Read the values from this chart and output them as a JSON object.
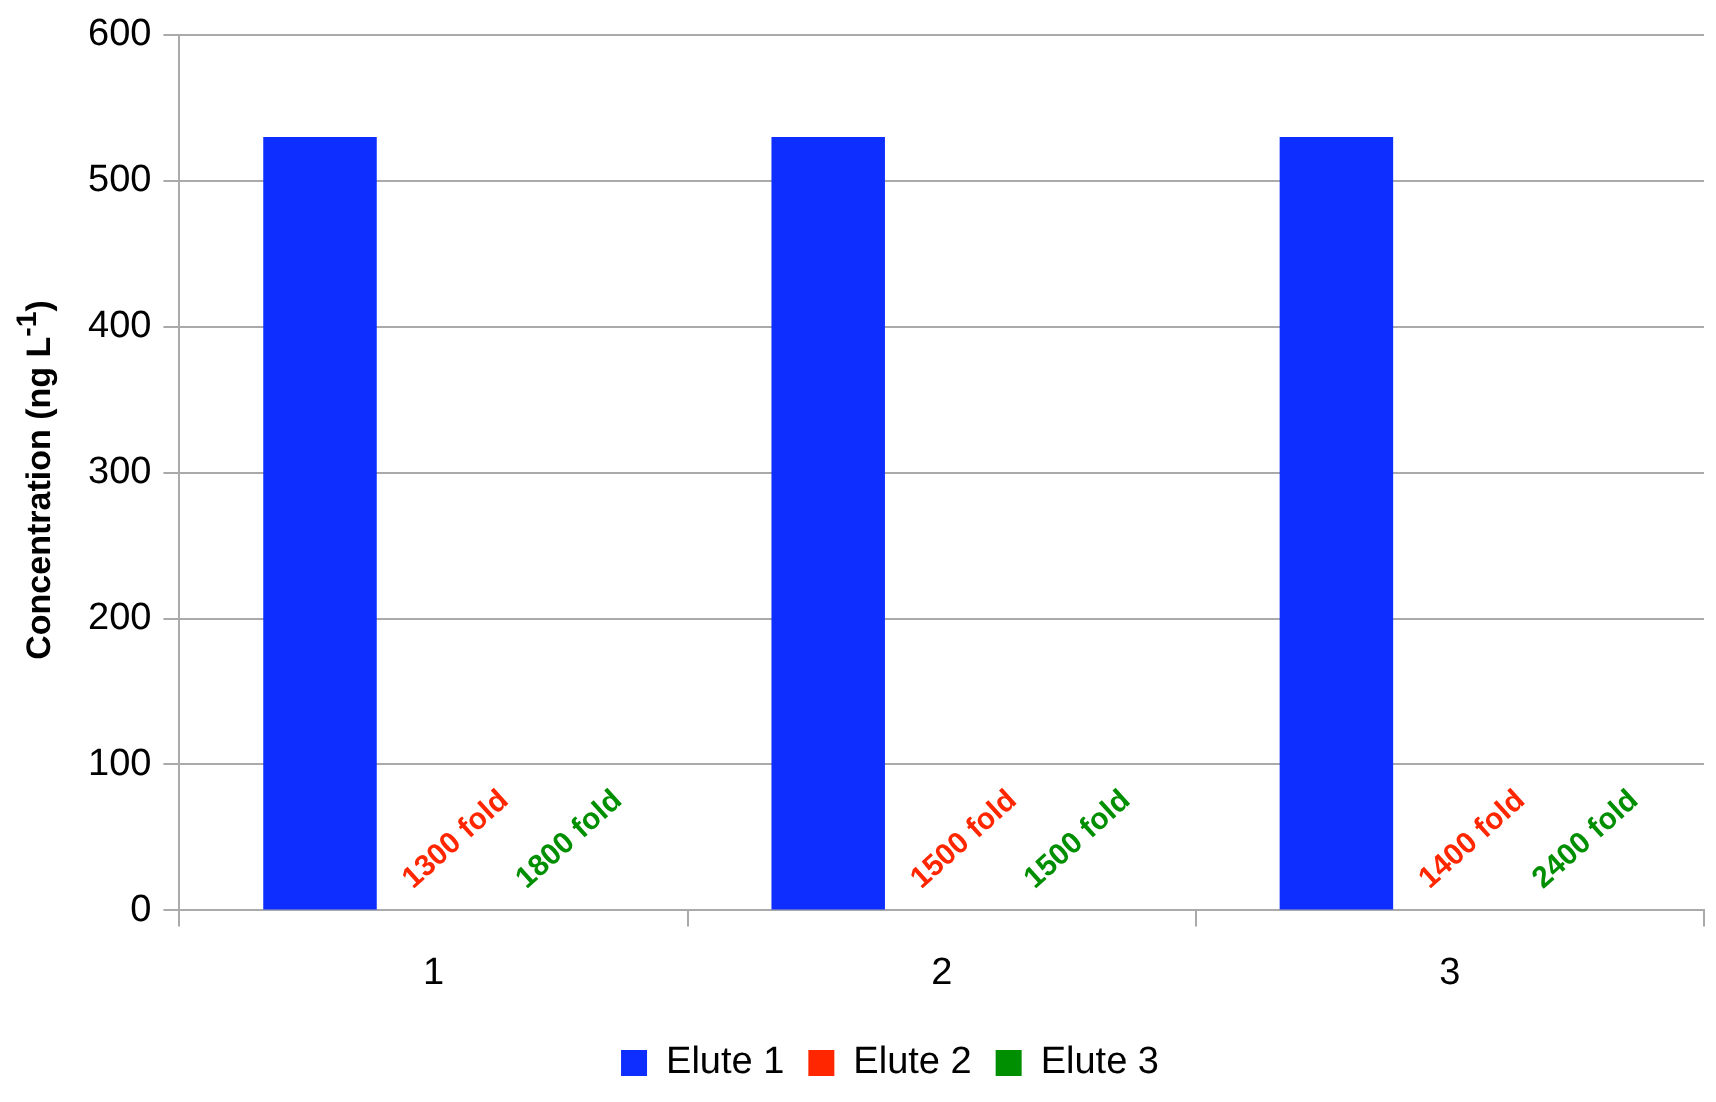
{
  "chart_data": {
    "type": "bar",
    "ylabel": "Concentration (ng L$^{-1}$)",
    "categories": [
      "1",
      "2",
      "3"
    ],
    "series": [
      {
        "name": "Elute 1",
        "color": "#0d2eff",
        "values": [
          530,
          530,
          530
        ]
      },
      {
        "name": "Elute 2",
        "color": "#ff2600",
        "values": [
          0,
          0,
          0
        ]
      },
      {
        "name": "Elute 3",
        "color": "#008f00",
        "values": [
          0,
          0,
          0
        ]
      }
    ],
    "annotations": [
      {
        "text": "1300 fold",
        "x": "1",
        "y": 0
      },
      {
        "text": "1800 fold",
        "x": "1",
        "y": 0
      },
      {
        "text": "1500 fold",
        "x": "2",
        "y": 0
      },
      {
        "text": "1500 fold",
        "x": "2",
        "y": 0
      },
      {
        "text": "1400 fold",
        "x": "3",
        "y": 0
      },
      {
        "text": "2400 fold",
        "x": "3",
        "y": 0
      }
    ],
    "ylim": [
      0,
      600
    ],
    "yticks": [
      0,
      100,
      200,
      300,
      400,
      500,
      600
    ],
    "grid": "y",
    "legend": "bottom"
  }
}
